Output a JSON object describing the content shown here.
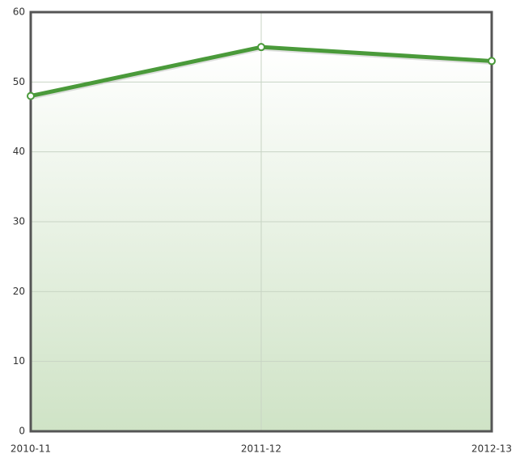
{
  "chart_data": {
    "type": "line",
    "categories": [
      "2010-11",
      "2011-12",
      "2012-13"
    ],
    "values": [
      48,
      55,
      53
    ],
    "color": "#4a9a3a",
    "area": true,
    "ylim": [
      0,
      60
    ],
    "yticks": [
      0,
      10,
      20,
      30,
      40,
      50,
      60
    ],
    "grid": true
  }
}
